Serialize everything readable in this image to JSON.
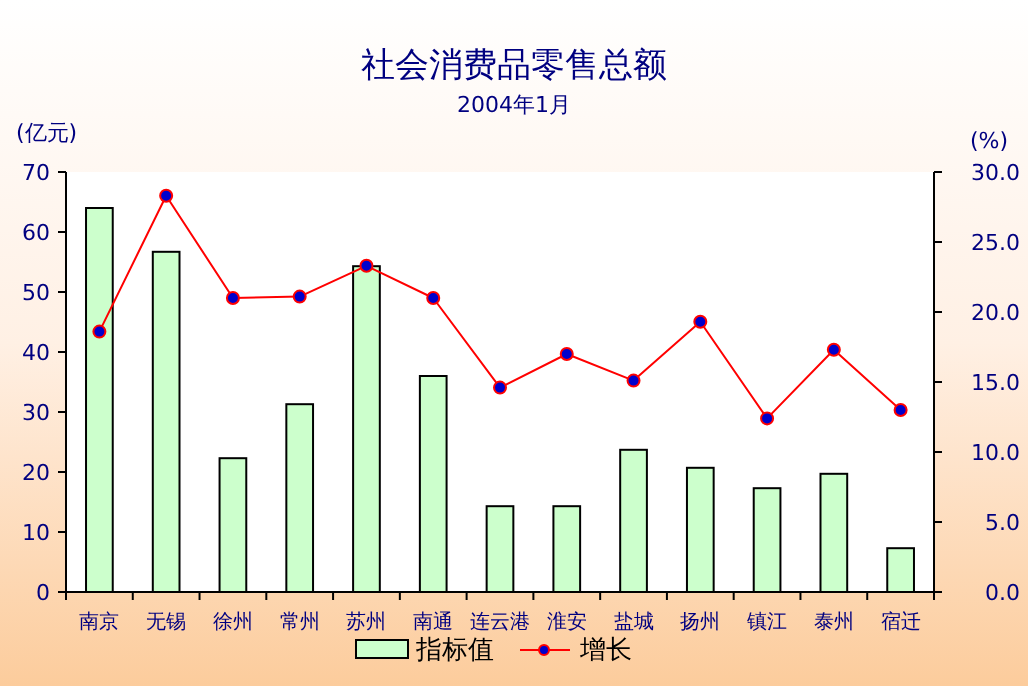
{
  "chart_data": {
    "type": "bar",
    "title": "社会消费品零售总额",
    "subtitle": "2004年1月",
    "ylabel": "(亿元)",
    "y2label": "(%)",
    "categories": [
      "南京",
      "无锡",
      "徐州",
      "常州",
      "苏州",
      "南通",
      "连云港",
      "淮安",
      "盐城",
      "扬州",
      "镇江",
      "泰州",
      "宿迁"
    ],
    "series": [
      {
        "name": "指标值",
        "color": "#ccffcc",
        "values": [
          64,
          56.7,
          22.3,
          31.3,
          54.3,
          36,
          14.3,
          14.3,
          23.7,
          20.7,
          17.3,
          19.7,
          7.3
        ]
      },
      {
        "name": "增长",
        "type": "line",
        "axis": "y2",
        "color": "#ff0000",
        "marker": "circle",
        "values": [
          18.6,
          28.3,
          21,
          21.1,
          23.3,
          21,
          14.6,
          17,
          15.1,
          19.3,
          12.4,
          17.3,
          13
        ]
      }
    ],
    "ylim": [
      0,
      70
    ],
    "yticks": [
      0,
      10,
      20,
      30,
      40,
      50,
      60,
      70
    ],
    "y2lim": [
      0,
      30
    ],
    "y2ticks": [
      {
        "value": 0,
        "label": "0.0"
      },
      {
        "value": 5,
        "label": "5.0"
      },
      {
        "value": 10,
        "label": "10.0"
      },
      {
        "value": 15,
        "label": "15.0"
      },
      {
        "value": 20,
        "label": "20.0"
      },
      {
        "value": 25,
        "label": "25.0"
      },
      {
        "value": 30,
        "label": "30.0"
      }
    ],
    "legend": "bottom",
    "grid": false
  }
}
